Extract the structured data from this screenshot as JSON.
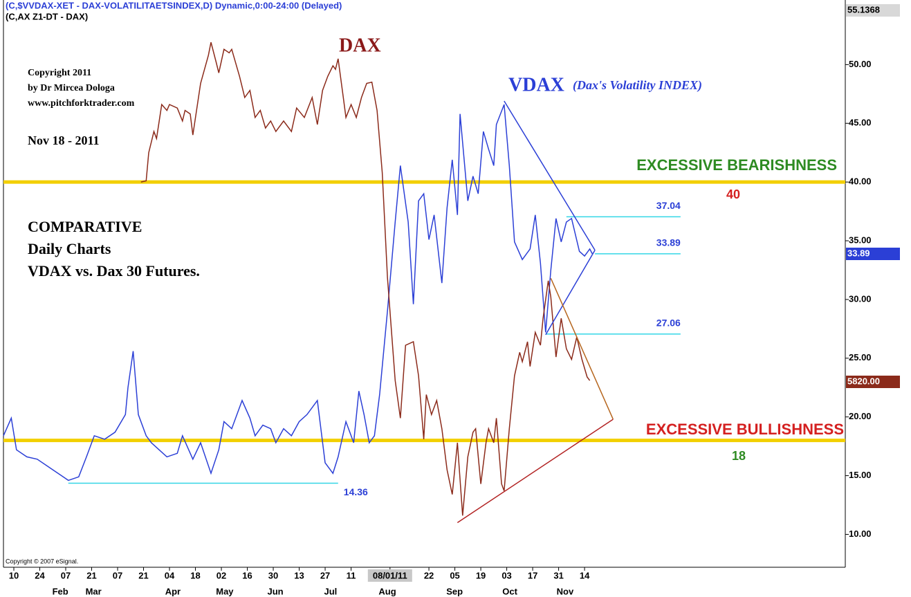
{
  "chart_data": {
    "type": "line",
    "header": [
      "(C,$VVDAX-XET - DAX-VOLATILITAETSINDEX,D) Dynamic,0:00-24:00 (Delayed)",
      "(C,AX Z1-DT - DAX)"
    ],
    "notes": [
      "DAX",
      "VDAX",
      "(Dax's Volatility INDEX)",
      "Copyright 2011",
      "by Dr Mircea Dologa",
      "www.pitchforktrader.com",
      "Nov 18 - 2011",
      "COMPARATIVE",
      "Daily Charts",
      "VDAX vs. Dax 30 Futures.",
      "EXCESSIVE BEARISHNESS",
      "EXCESSIVE BULLISHNESS",
      "Copyright © 2007 eSignal."
    ],
    "price_boxes": [
      "55.1368",
      "33.89",
      "5820.00"
    ],
    "xlim": [
      -4,
      320.5
    ],
    "ylim": [
      7.2,
      55.5
    ],
    "xticks": [
      {
        "value": 0,
        "label": "10"
      },
      {
        "value": 10,
        "label": "24"
      },
      {
        "value": 20,
        "label": "07"
      },
      {
        "value": 30,
        "label": "21"
      },
      {
        "value": 40,
        "label": "07"
      },
      {
        "value": 50,
        "label": "21"
      },
      {
        "value": 60,
        "label": "04"
      },
      {
        "value": 70,
        "label": "18"
      },
      {
        "value": 80,
        "label": "02"
      },
      {
        "value": 90,
        "label": "16"
      },
      {
        "value": 100,
        "label": "30"
      },
      {
        "value": 110,
        "label": "13"
      },
      {
        "value": 120,
        "label": "27"
      },
      {
        "value": 130,
        "label": "11"
      },
      {
        "value": 145,
        "label": "08/01/11"
      },
      {
        "value": 160,
        "label": "22"
      },
      {
        "value": 170,
        "label": "05"
      },
      {
        "value": 180,
        "label": "19"
      },
      {
        "value": 190,
        "label": "03"
      },
      {
        "value": 200,
        "label": "17"
      },
      {
        "value": 210,
        "label": "31"
      },
      {
        "value": 220,
        "label": "14"
      }
    ],
    "months": [
      {
        "value": 17.9,
        "label": "Feb"
      },
      {
        "value": 30.7,
        "label": "Mar"
      },
      {
        "value": 61.3,
        "label": "Apr"
      },
      {
        "value": 81.3,
        "label": "May"
      },
      {
        "value": 100.8,
        "label": "Jun"
      },
      {
        "value": 122.1,
        "label": "Jul"
      },
      {
        "value": 144,
        "label": "Aug"
      },
      {
        "value": 169.9,
        "label": "Sep"
      },
      {
        "value": 191.2,
        "label": "Oct"
      },
      {
        "value": 212.5,
        "label": "Nov"
      }
    ],
    "yticks": [
      {
        "value": 10,
        "label": "10.00"
      },
      {
        "value": 15,
        "label": "15.00"
      },
      {
        "value": 20,
        "label": "20.00"
      },
      {
        "value": 25,
        "label": "25.00"
      },
      {
        "value": 30,
        "label": "30.00"
      },
      {
        "value": 35,
        "label": "35.00"
      },
      {
        "value": 40,
        "label": "40.00"
      },
      {
        "value": 45,
        "label": "45.00"
      },
      {
        "value": 50,
        "label": "50.00"
      }
    ],
    "series": [
      {
        "name": "VDAX",
        "color": "#2b3fd6",
        "x": [
          -4,
          -1,
          1,
          5,
          9,
          13,
          19,
          21,
          25,
          28,
          31,
          35,
          39,
          43,
          44,
          46,
          48,
          51,
          53,
          56,
          59,
          63,
          65,
          69,
          72,
          76,
          79,
          81,
          84,
          88,
          91,
          93,
          96,
          99,
          101,
          104,
          107,
          110,
          113,
          117,
          120,
          123,
          125,
          128,
          131,
          133,
          135,
          137,
          139,
          141,
          144,
          147,
          149,
          152,
          154,
          156,
          158,
          160,
          162,
          165,
          167,
          169,
          171,
          172,
          175,
          177,
          179,
          181,
          183,
          185,
          186,
          189,
          191,
          193,
          196,
          199,
          201,
          203,
          205,
          207,
          209,
          211,
          213,
          215,
          218,
          220,
          222,
          223
        ],
        "values": [
          18.4,
          19.9,
          17.2,
          16.6,
          16.4,
          15.8,
          14.9,
          14.6,
          14.9,
          16.6,
          18.4,
          18.1,
          18.7,
          20.2,
          22.5,
          25.6,
          20.2,
          18.4,
          17.8,
          17.2,
          16.6,
          16.9,
          18.4,
          16.4,
          17.8,
          15.2,
          17.2,
          19.6,
          19.0,
          21.4,
          19.9,
          18.4,
          19.3,
          19.0,
          17.8,
          19.0,
          18.4,
          19.6,
          20.2,
          21.4,
          16.1,
          15.2,
          16.6,
          19.6,
          17.8,
          22.2,
          20.2,
          17.8,
          18.4,
          21.9,
          29.0,
          36.6,
          41.4,
          36.6,
          29.6,
          38.4,
          39.0,
          35.1,
          37.2,
          31.4,
          37.8,
          41.9,
          37.2,
          45.8,
          38.4,
          40.5,
          39.0,
          44.3,
          42.8,
          41.4,
          44.9,
          46.6,
          41.4,
          34.9,
          33.4,
          34.3,
          37.2,
          33.1,
          27.2,
          32.5,
          36.9,
          34.9,
          36.6,
          36.9,
          34.1,
          33.7,
          34.3,
          33.89
        ]
      },
      {
        "name": "DAX",
        "color": "#8b2a1a",
        "x": [
          49,
          51,
          52,
          54,
          55,
          57,
          59,
          60,
          63,
          65,
          66,
          68,
          69,
          72,
          75,
          76,
          78,
          79,
          81,
          83,
          84,
          87,
          89,
          91,
          93,
          95,
          97,
          99,
          101,
          104,
          107,
          109,
          112,
          115,
          117,
          119,
          121,
          123,
          124,
          125,
          127,
          128,
          130,
          132,
          134,
          136,
          138,
          140,
          142,
          144,
          147,
          149,
          151,
          154,
          156,
          158,
          159,
          161,
          163,
          165,
          167,
          169,
          171,
          173,
          175,
          177,
          178,
          180,
          182,
          183,
          185,
          186,
          188,
          189,
          191,
          193,
          195,
          196,
          198,
          199,
          201,
          203,
          204,
          206,
          207,
          209,
          211,
          213,
          215,
          217,
          219,
          221,
          222
        ],
        "values": [
          40.0,
          40.1,
          42.5,
          44.3,
          43.7,
          46.6,
          46.1,
          46.6,
          46.3,
          45.2,
          46.1,
          45.8,
          44.0,
          48.4,
          50.8,
          51.9,
          50.2,
          49.3,
          51.3,
          51.0,
          51.3,
          49.0,
          47.2,
          47.8,
          45.5,
          46.1,
          44.6,
          45.2,
          44.3,
          45.2,
          44.3,
          46.3,
          45.5,
          47.2,
          44.9,
          47.8,
          49.0,
          49.9,
          49.6,
          50.5,
          47.2,
          45.5,
          46.6,
          45.5,
          47.2,
          48.4,
          48.5,
          46.1,
          40.8,
          31.9,
          23.1,
          19.9,
          26.1,
          26.4,
          23.5,
          18.1,
          21.9,
          20.2,
          21.4,
          19.0,
          15.5,
          13.4,
          17.8,
          11.6,
          16.6,
          18.7,
          19.0,
          14.3,
          17.8,
          19.0,
          17.8,
          19.9,
          14.3,
          13.7,
          19.0,
          23.5,
          25.5,
          24.7,
          26.4,
          24.3,
          27.2,
          26.1,
          28.4,
          31.6,
          30.2,
          25.1,
          28.4,
          25.8,
          24.9,
          26.8,
          24.9,
          23.4,
          23.1
        ]
      }
    ],
    "levels": [
      {
        "value": 40,
        "color": "#f2cf00"
      },
      {
        "value": 18,
        "color": "#f2cf00"
      }
    ],
    "hlines": [
      {
        "value": 37.04,
        "x": [
          213,
          257
        ],
        "color": "#33d6e6"
      },
      {
        "value": 33.89,
        "x": [
          224,
          257
        ],
        "color": "#33d6e6"
      },
      {
        "value": 27.06,
        "x": [
          205,
          257
        ],
        "color": "#33d6e6"
      },
      {
        "value": 14.36,
        "x": [
          21,
          125
        ],
        "color": "#33d6e6"
      }
    ],
    "trendlines": [
      {
        "x": [
          189,
          224
        ],
        "y": [
          46.9,
          34.2
        ],
        "color": "#2b3fd6"
      },
      {
        "x": [
          205,
          224
        ],
        "y": [
          27.0,
          34.2
        ],
        "color": "#2b3fd6"
      },
      {
        "x": [
          207,
          231
        ],
        "y": [
          31.8,
          19.8
        ],
        "color": "#b5651d"
      },
      {
        "x": [
          171,
          231
        ],
        "y": [
          11.0,
          19.8
        ],
        "color": "#b22222"
      }
    ]
  }
}
